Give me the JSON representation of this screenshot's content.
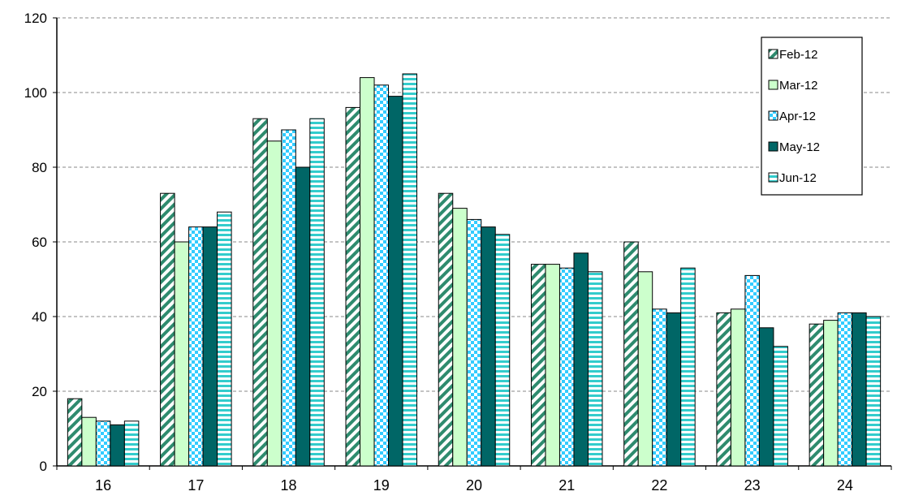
{
  "chart_data": {
    "type": "bar",
    "title": "",
    "xlabel": "",
    "ylabel": "",
    "categories": [
      "16",
      "17",
      "18",
      "19",
      "20",
      "21",
      "22",
      "23",
      "24"
    ],
    "ylim": [
      0,
      120
    ],
    "yticks": [
      "0",
      "20",
      "40",
      "60",
      "80",
      "100",
      "120"
    ],
    "grid": true,
    "legend_position": "top-right",
    "series": [
      {
        "name": "Feb-12",
        "pattern": "diagonal-stripes",
        "color": "#2e8b6e",
        "values": [
          18,
          73,
          93,
          96,
          73,
          54,
          60,
          41,
          38
        ]
      },
      {
        "name": "Mar-12",
        "pattern": "solid",
        "color": "#ccffcc",
        "values": [
          13,
          60,
          87,
          104,
          69,
          54,
          52,
          42,
          39
        ]
      },
      {
        "name": "Apr-12",
        "pattern": "checker",
        "color": "#33ccff",
        "values": [
          12,
          64,
          90,
          102,
          66,
          53,
          42,
          51,
          41
        ]
      },
      {
        "name": "May-12",
        "pattern": "solid",
        "color": "#006666",
        "values": [
          11,
          64,
          80,
          99,
          64,
          57,
          41,
          37,
          41
        ]
      },
      {
        "name": "Jun-12",
        "pattern": "horizontal-stripes",
        "color": "#33cccc",
        "values": [
          12,
          68,
          93,
          105,
          62,
          52,
          53,
          32,
          40
        ]
      }
    ]
  }
}
